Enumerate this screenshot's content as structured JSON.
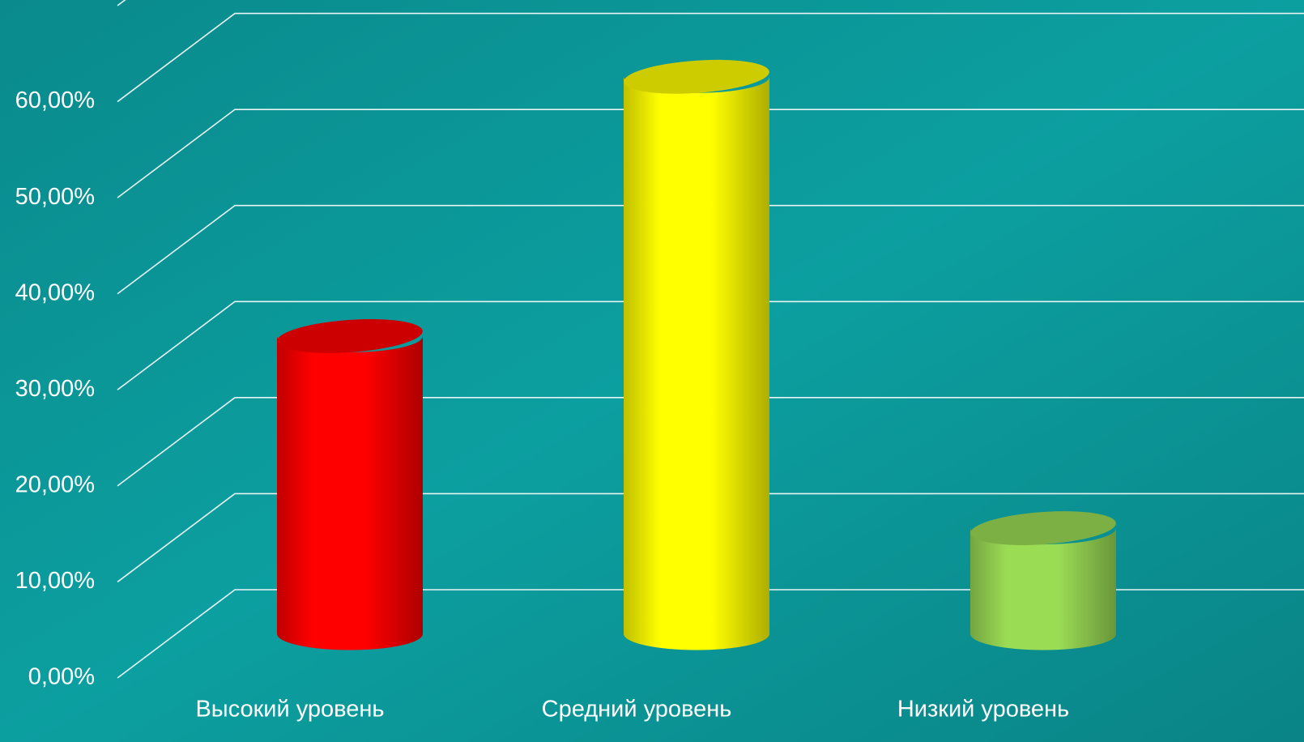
{
  "chart_data": {
    "type": "bar3d",
    "categories": [
      "Высокий уровень",
      "Средний уровень",
      "Низкий уровень"
    ],
    "series": [
      {
        "values": [
          31,
          58,
          11
        ],
        "colors": [
          "#ff0000",
          "#ffff00",
          "#9bdc55"
        ]
      }
    ],
    "ylim": [
      0,
      70
    ],
    "yticks": [
      {
        "value": 0,
        "label": "0,00%"
      },
      {
        "value": 10,
        "label": "10,00%"
      },
      {
        "value": 20,
        "label": "20,00%"
      },
      {
        "value": 30,
        "label": "30,00%"
      },
      {
        "value": 40,
        "label": "40,00%"
      },
      {
        "value": 50,
        "label": "50,00%"
      },
      {
        "value": 60,
        "label": "60,00%"
      }
    ],
    "grid": true
  }
}
